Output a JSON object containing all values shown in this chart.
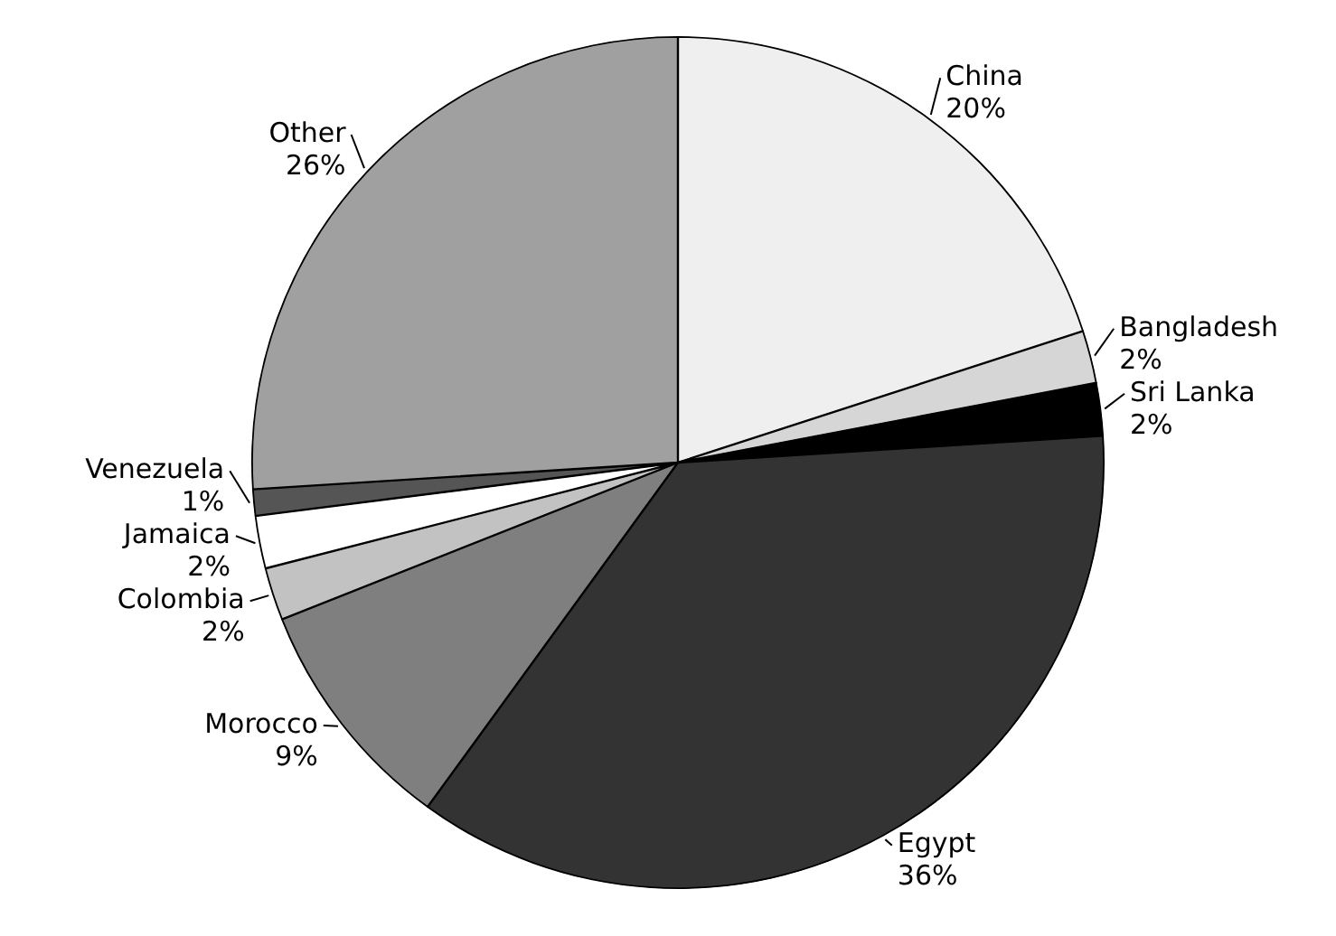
{
  "chart_data": {
    "type": "pie",
    "categories": [
      "China",
      "Bangladesh",
      "Sri Lanka",
      "Egypt",
      "Morocco",
      "Colombia",
      "Jamaica",
      "Venezuela",
      "Other"
    ],
    "values": [
      20,
      2,
      2,
      36,
      9,
      2,
      2,
      1,
      26
    ],
    "value_labels": [
      "20%",
      "2%",
      "2%",
      "36%",
      "9%",
      "2%",
      "2%",
      "1%",
      "26%"
    ],
    "colors": [
      "#efefef",
      "#d6d6d6",
      "#000000",
      "#333333",
      "#7f7f7f",
      "#c2c2c2",
      "#ffffff",
      "#555555",
      "#a0a0a0"
    ],
    "legend": false
  }
}
